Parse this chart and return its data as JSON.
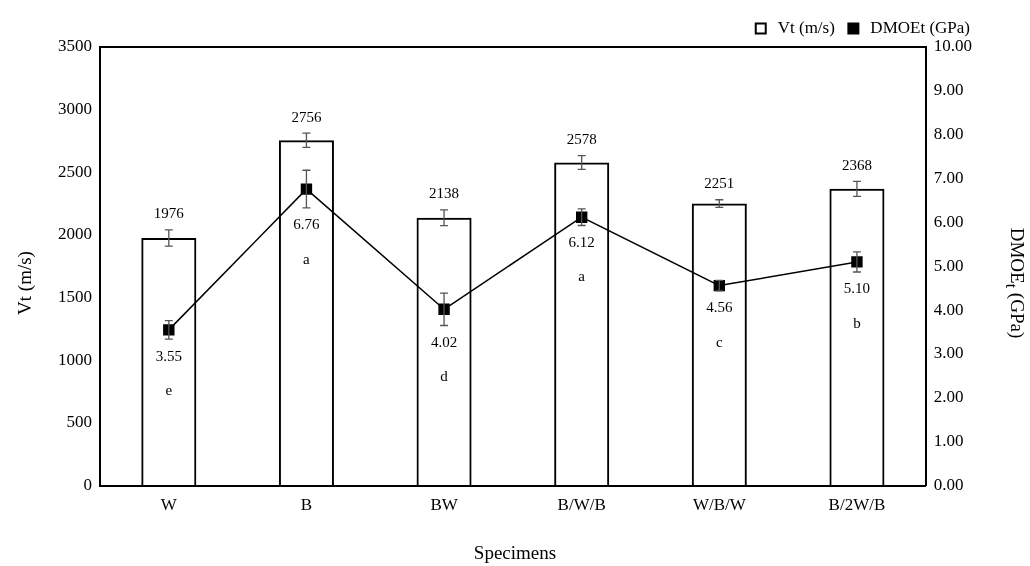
{
  "chart_data": {
    "type": "bar",
    "xlabel": "Specimens",
    "ylabel": "Vt (m/s)",
    "y2label": "DMOE$_{t}$ (GPa)",
    "categories": [
      "W",
      "B",
      "BW",
      "B/W/B",
      "W/B/W",
      "B/2W/B"
    ],
    "series": [
      {
        "name": "Vt (m/s)",
        "color": "#000000",
        "values": [
          1976,
          2756,
          2138,
          2578,
          2251,
          2368
        ],
        "errors": [
          65,
          57,
          63,
          55,
          30,
          60
        ],
        "value_labels": [
          "1976",
          "2756",
          "2138",
          "2578",
          "2251",
          "2368"
        ]
      },
      {
        "name": "DMOEt (GPa)",
        "type": "line",
        "axis": "y2",
        "color": "#000000",
        "marker": "square",
        "line_style": "solid",
        "values": [
          3.55,
          6.76,
          4.02,
          6.12,
          4.56,
          5.1
        ],
        "errors": [
          0.21,
          0.43,
          0.37,
          0.19,
          0.12,
          0.23
        ],
        "value_labels": [
          "3.55",
          "6.76",
          "4.02",
          "6.12",
          "4.56",
          "5.10"
        ]
      }
    ],
    "ylim": [
      0,
      3500
    ],
    "yticks": [
      0,
      500,
      1000,
      1500,
      2000,
      2500,
      3000,
      3500
    ],
    "y2lim": [
      0,
      10
    ],
    "y2ticks": [
      {
        "value": 0,
        "label": "0.00"
      },
      {
        "value": 1,
        "label": "1.00"
      },
      {
        "value": 2,
        "label": "2.00"
      },
      {
        "value": 3,
        "label": "3.00"
      },
      {
        "value": 4,
        "label": "4.00"
      },
      {
        "value": 5,
        "label": "5.00"
      },
      {
        "value": 6,
        "label": "6.00"
      },
      {
        "value": 7,
        "label": "7.00"
      },
      {
        "value": 8,
        "label": "8.00"
      },
      {
        "value": 9,
        "label": "9.00"
      },
      {
        "value": 10,
        "label": "10.00"
      }
    ],
    "annotations": [
      "e",
      "a",
      "d",
      "a",
      "c",
      "b"
    ],
    "grid": false,
    "legend": "top right"
  }
}
